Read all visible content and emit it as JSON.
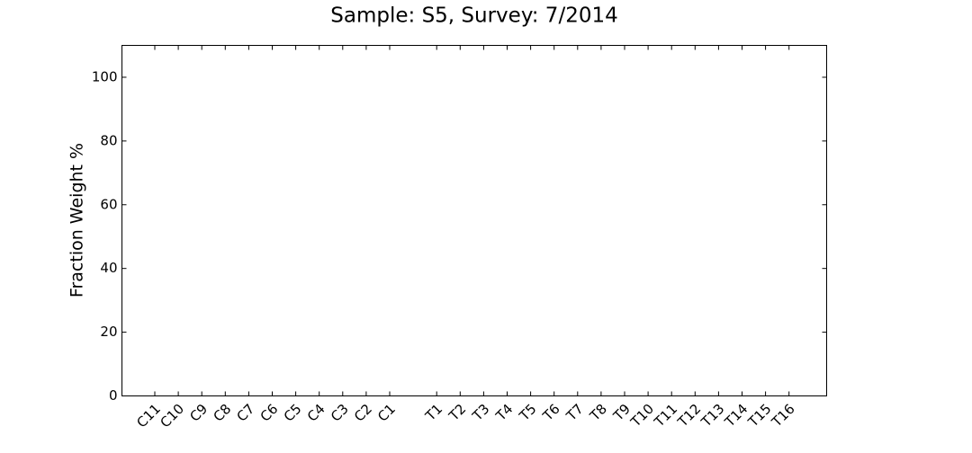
{
  "chart_data": {
    "type": "bar",
    "title": "Sample: S5, Survey: 7/2014",
    "ylabel": "Fraction Weight %",
    "categories": [
      "C11",
      "C10",
      "C9",
      "C8",
      "C7",
      "C6",
      "C5",
      "C4",
      "C3",
      "C2",
      "C1",
      null,
      "T1",
      "T2",
      "T3",
      "T4",
      "T5",
      "T6",
      "T7",
      "T8",
      "T9",
      "T10",
      "T11",
      "T12",
      "T13",
      "T14",
      "T15",
      "T16"
    ],
    "values": [
      0,
      0,
      0,
      0,
      0,
      0,
      0,
      0,
      0,
      0,
      0,
      null,
      0,
      0,
      0,
      0,
      0,
      0,
      0,
      0,
      0,
      0,
      0,
      0,
      0,
      0,
      0,
      0
    ],
    "color": "#4472c4",
    "ylim": [
      0,
      110
    ],
    "yticks": [
      0,
      20,
      40,
      60,
      80,
      100
    ],
    "grid": false
  }
}
